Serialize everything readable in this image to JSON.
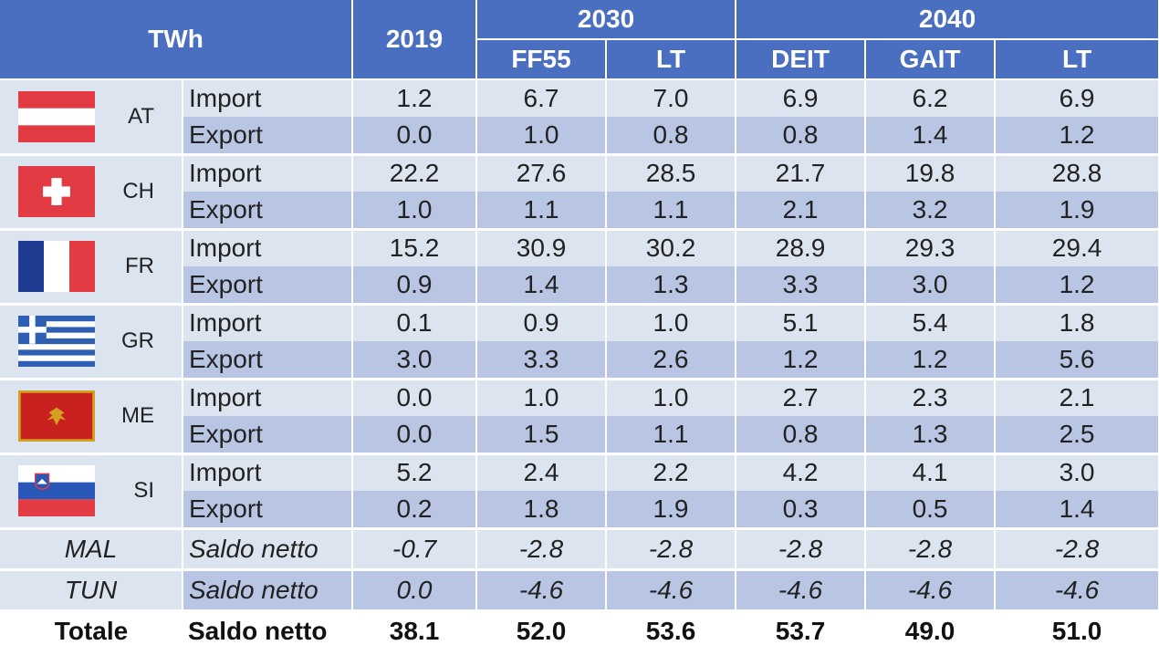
{
  "header": {
    "unit": "TWh",
    "y2019": "2019",
    "y2030": "2030",
    "y2040": "2040",
    "scenarios": [
      "FF55",
      "LT",
      "DEIT",
      "GAIT",
      "LT"
    ]
  },
  "countries": [
    {
      "code": "AT",
      "flag": "austria-flag",
      "rows": [
        {
          "label": "Import",
          "values": [
            "1.2",
            "6.7",
            "7.0",
            "6.9",
            "6.2",
            "6.9"
          ]
        },
        {
          "label": "Export",
          "values": [
            "0.0",
            "1.0",
            "0.8",
            "0.8",
            "1.4",
            "1.2"
          ]
        }
      ]
    },
    {
      "code": "CH",
      "flag": "switzerland-flag",
      "rows": [
        {
          "label": "Import",
          "values": [
            "22.2",
            "27.6",
            "28.5",
            "21.7",
            "19.8",
            "28.8"
          ]
        },
        {
          "label": "Export",
          "values": [
            "1.0",
            "1.1",
            "1.1",
            "2.1",
            "3.2",
            "1.9"
          ]
        }
      ]
    },
    {
      "code": "FR",
      "flag": "france-flag",
      "rows": [
        {
          "label": "Import",
          "values": [
            "15.2",
            "30.9",
            "30.2",
            "28.9",
            "29.3",
            "29.4"
          ]
        },
        {
          "label": "Export",
          "values": [
            "0.9",
            "1.4",
            "1.3",
            "3.3",
            "3.0",
            "1.2"
          ]
        }
      ]
    },
    {
      "code": "GR",
      "flag": "greece-flag",
      "rows": [
        {
          "label": "Import",
          "values": [
            "0.1",
            "0.9",
            "1.0",
            "5.1",
            "5.4",
            "1.8"
          ]
        },
        {
          "label": "Export",
          "values": [
            "3.0",
            "3.3",
            "2.6",
            "1.2",
            "1.2",
            "5.6"
          ]
        }
      ]
    },
    {
      "code": "ME",
      "flag": "montenegro-flag",
      "rows": [
        {
          "label": "Import",
          "values": [
            "0.0",
            "1.0",
            "1.0",
            "2.7",
            "2.3",
            "2.1"
          ]
        },
        {
          "label": "Export",
          "values": [
            "0.0",
            "1.5",
            "1.1",
            "0.8",
            "1.3",
            "2.5"
          ]
        }
      ]
    },
    {
      "code": "SI",
      "flag": "slovenia-flag",
      "rows": [
        {
          "label": "Import",
          "values": [
            "5.2",
            "2.4",
            "2.2",
            "4.2",
            "4.1",
            "3.0"
          ]
        },
        {
          "label": "Export",
          "values": [
            "0.2",
            "1.8",
            "1.9",
            "0.3",
            "0.5",
            "1.4"
          ]
        }
      ]
    }
  ],
  "others": [
    {
      "name": "MAL",
      "label": "Saldo netto",
      "values": [
        "-0.7",
        "-2.8",
        "-2.8",
        "-2.8",
        "-2.8",
        "-2.8"
      ]
    },
    {
      "name": "TUN",
      "label": "Saldo netto",
      "values": [
        "0.0",
        "-4.6",
        "-4.6",
        "-4.6",
        "-4.6",
        "-4.6"
      ]
    }
  ],
  "total": {
    "name": "Totale",
    "label": "Saldo netto",
    "values": [
      "38.1",
      "52.0",
      "53.6",
      "53.7",
      "49.0",
      "51.0"
    ]
  },
  "colors": {
    "header": "#4a6fc1",
    "row_light": "#dce4f0",
    "row_dark": "#b8c6e4"
  }
}
